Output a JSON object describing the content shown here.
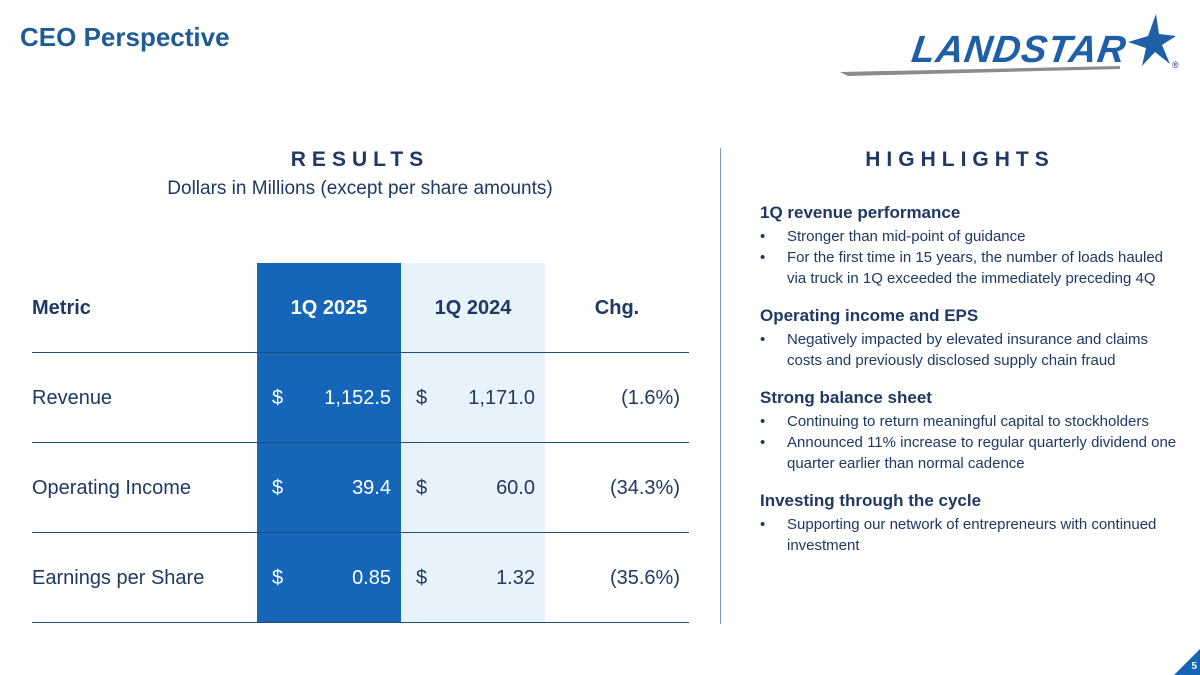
{
  "title": "CEO Perspective",
  "logo": {
    "text": "LANDSTAR",
    "reg": "®"
  },
  "results": {
    "title": "RESULTS",
    "subtitle": "Dollars in Millions (except per share amounts)",
    "columns": [
      "Metric",
      "1Q 2025",
      "1Q 2024",
      "Chg."
    ],
    "rows": [
      {
        "metric": "Revenue",
        "cur_sym": "$",
        "cur": "1,152.5",
        "prev_sym": "$",
        "prev": "1,171.0",
        "chg": "(1.6%)"
      },
      {
        "metric": "Operating Income",
        "cur_sym": "$",
        "cur": "39.4",
        "prev_sym": "$",
        "prev": "60.0",
        "chg": "(34.3%)"
      },
      {
        "metric": "Earnings per Share",
        "cur_sym": "$",
        "cur": "0.85",
        "prev_sym": "$",
        "prev": "1.32",
        "chg": "(35.6%)"
      }
    ]
  },
  "highlights": {
    "title": "HIGHLIGHTS",
    "groups": [
      {
        "heading": "1Q revenue performance",
        "bullets": [
          "Stronger than mid-point of guidance",
          "For the first time in 15 years, the number of loads hauled via truck in 1Q exceeded the immediately preceding 4Q"
        ]
      },
      {
        "heading": "Operating income and EPS",
        "bullets": [
          "Negatively impacted by elevated insurance and claims costs and previously disclosed supply chain fraud"
        ]
      },
      {
        "heading": "Strong balance sheet",
        "bullets": [
          "Continuing to return meaningful capital to stockholders",
          "Announced 11% increase to regular quarterly dividend one quarter earlier than normal cadence"
        ]
      },
      {
        "heading": "Investing through the cycle",
        "bullets": [
          "Supporting our network of entrepreneurs with continued investment"
        ]
      }
    ]
  },
  "page_number": "5",
  "colors": {
    "brand_blue": "#1565b8",
    "light_blue": "#e8f2fb",
    "navy": "#1f3864"
  }
}
